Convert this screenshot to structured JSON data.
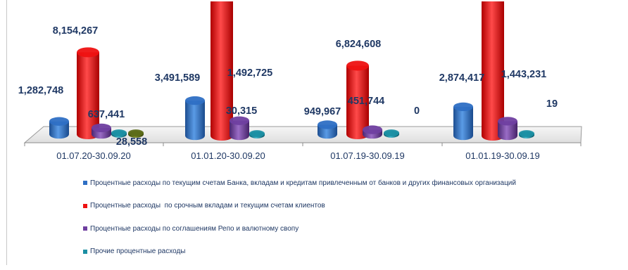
{
  "chart_data": {
    "type": "bar",
    "categories": [
      "01.07.20-30.09.20",
      "01.01.20-30.09.20",
      "01.07.19-30.09.19",
      "01.01.19-30.09.19"
    ],
    "series": [
      {
        "name": "Процентные расходы по текущим счетам Банка, вкладам и кредитам привлеченным от банков и других финансовых организаций",
        "color": "#2e6fc4",
        "values": [
          1282748,
          3491589,
          949967,
          2874417
        ],
        "labels": [
          "1,282,748",
          "3,491,589",
          "949,967",
          "2,874,417"
        ]
      },
      {
        "name": "Процентные расходы  по срочным вкладам и текущим счетам клиентов",
        "color": "#ee1111",
        "values": [
          8154267,
          27000000,
          6824608,
          22000000
        ],
        "labels": [
          "8,154,267",
          "",
          "6,824,608",
          ""
        ]
      },
      {
        "name": "Процентные расходы по соглашениям Репо и валютному свопу",
        "color": "#6f3fa0",
        "values": [
          637441,
          1492725,
          451744,
          1443231
        ],
        "labels": [
          "637,441",
          "1,492,725",
          "451,744",
          "1,443,231"
        ]
      },
      {
        "name": "Прочие процентные расходы",
        "color": "#1b8fa3",
        "values": [
          0,
          30315,
          0,
          19
        ],
        "labels": [
          "",
          "30,315",
          "0",
          "19"
        ]
      },
      {
        "name": "",
        "color": "#5c6b18",
        "values": [
          28558,
          0,
          0,
          0
        ],
        "labels": [
          "28,558",
          "",
          "",
          ""
        ]
      }
    ],
    "legend_position": "bottom",
    "grid": false
  }
}
